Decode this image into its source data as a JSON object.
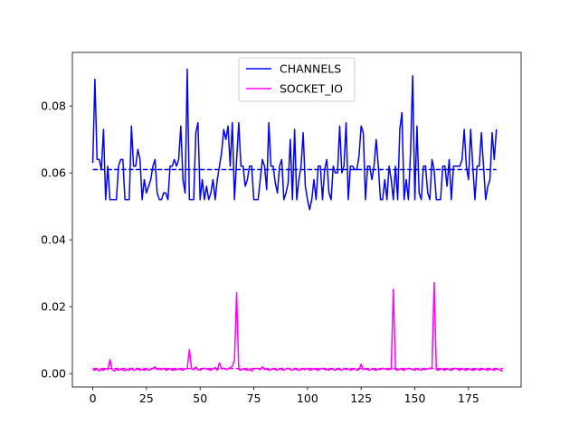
{
  "chart_data": {
    "type": "line",
    "title": "",
    "xlabel": "",
    "ylabel": "",
    "xlim": [
      -9.5,
      199.5
    ],
    "ylim": [
      -0.004,
      0.096
    ],
    "x_ticks": [
      0,
      25,
      50,
      75,
      100,
      125,
      150,
      175
    ],
    "x_tick_labels": [
      "0",
      "25",
      "50",
      "75",
      "100",
      "125",
      "150",
      "175"
    ],
    "y_ticks": [
      0.0,
      0.02,
      0.04,
      0.06,
      0.08
    ],
    "y_tick_labels": [
      "0.00",
      "0.02",
      "0.04",
      "0.06",
      "0.08"
    ],
    "grid": false,
    "legend": {
      "placement": "top-center"
    },
    "x_start": 0,
    "series": [
      {
        "name": "CHANNELS",
        "color": "#0000ff",
        "mean": 0.061,
        "values": [
          0.063,
          0.088,
          0.064,
          0.064,
          0.061,
          0.073,
          0.052,
          0.062,
          0.052,
          0.052,
          0.052,
          0.052,
          0.062,
          0.064,
          0.064,
          0.052,
          0.052,
          0.052,
          0.074,
          0.062,
          0.062,
          0.067,
          0.064,
          0.052,
          0.058,
          0.054,
          0.056,
          0.058,
          0.062,
          0.064,
          0.054,
          0.052,
          0.052,
          0.054,
          0.054,
          0.052,
          0.062,
          0.062,
          0.064,
          0.062,
          0.064,
          0.074,
          0.058,
          0.054,
          0.091,
          0.052,
          0.052,
          0.052,
          0.072,
          0.075,
          0.052,
          0.058,
          0.052,
          0.056,
          0.052,
          0.054,
          0.058,
          0.052,
          0.058,
          0.062,
          0.066,
          0.073,
          0.07,
          0.074,
          0.062,
          0.075,
          0.052,
          0.064,
          0.075,
          0.062,
          0.062,
          0.056,
          0.058,
          0.062,
          0.062,
          0.052,
          0.052,
          0.052,
          0.058,
          0.064,
          0.062,
          0.055,
          0.075,
          0.062,
          0.062,
          0.057,
          0.054,
          0.062,
          0.064,
          0.052,
          0.054,
          0.057,
          0.07,
          0.052,
          0.073,
          0.052,
          0.058,
          0.062,
          0.072,
          0.056,
          0.052,
          0.049,
          0.052,
          0.058,
          0.052,
          0.062,
          0.062,
          0.052,
          0.061,
          0.064,
          0.054,
          0.052,
          0.062,
          0.06,
          0.06,
          0.074,
          0.06,
          0.062,
          0.075,
          0.052,
          0.062,
          0.062,
          0.061,
          0.061,
          0.065,
          0.074,
          0.072,
          0.052,
          0.062,
          0.062,
          0.058,
          0.062,
          0.07,
          0.062,
          0.052,
          0.052,
          0.058,
          0.052,
          0.062,
          0.058,
          0.052,
          0.062,
          0.052,
          0.073,
          0.078,
          0.052,
          0.058,
          0.052,
          0.066,
          0.089,
          0.052,
          0.074,
          0.054,
          0.052,
          0.062,
          0.062,
          0.054,
          0.052,
          0.064,
          0.061,
          0.052,
          0.052,
          0.052,
          0.062,
          0.062,
          0.056,
          0.064,
          0.052,
          0.062,
          0.062,
          0.062,
          0.062,
          0.064,
          0.073,
          0.062,
          0.058,
          0.073,
          0.062,
          0.052,
          0.062,
          0.062,
          0.072,
          0.062,
          0.052,
          0.056,
          0.058,
          0.072,
          0.064,
          0.073
        ]
      },
      {
        "name": "SOCKET_IO",
        "color": "#ff00ff",
        "mean": 0.0015,
        "values": [
          0.0012,
          0.001,
          0.0014,
          0.0008,
          0.0012,
          0.001,
          0.0015,
          0.0012,
          0.0042,
          0.0012,
          0.0008,
          0.0012,
          0.001,
          0.0014,
          0.0011,
          0.0009,
          0.0012,
          0.001,
          0.0016,
          0.001,
          0.0012,
          0.0014,
          0.001,
          0.0012,
          0.001,
          0.0014,
          0.001,
          0.0012,
          0.0016,
          0.002,
          0.0012,
          0.0014,
          0.0012,
          0.0016,
          0.001,
          0.0012,
          0.0014,
          0.001,
          0.0012,
          0.0011,
          0.0014,
          0.0012,
          0.001,
          0.0014,
          0.0016,
          0.0072,
          0.0014,
          0.0012,
          0.002,
          0.0012,
          0.001,
          0.0014,
          0.0016,
          0.0014,
          0.0012,
          0.001,
          0.0014,
          0.0018,
          0.001,
          0.0032,
          0.0014,
          0.0016,
          0.0012,
          0.0014,
          0.0018,
          0.0022,
          0.004,
          0.0242,
          0.0012,
          0.001,
          0.0014,
          0.0012,
          0.001,
          0.0012,
          0.0008,
          0.0014,
          0.0016,
          0.0014,
          0.0012,
          0.002,
          0.0012,
          0.0014,
          0.001,
          0.0012,
          0.0014,
          0.0012,
          0.001,
          0.0014,
          0.0012,
          0.001,
          0.0014,
          0.0016,
          0.0012,
          0.001,
          0.0014,
          0.0012,
          0.001,
          0.0012,
          0.0014,
          0.0012,
          0.0016,
          0.001,
          0.0012,
          0.0014,
          0.0012,
          0.001,
          0.0014,
          0.0016,
          0.0012,
          0.0012,
          0.001,
          0.0014,
          0.0012,
          0.001,
          0.0014,
          0.0012,
          0.001,
          0.0016,
          0.0012,
          0.0014,
          0.001,
          0.0012,
          0.0014,
          0.001,
          0.0012,
          0.0028,
          0.0012,
          0.0014,
          0.0012,
          0.001,
          0.0014,
          0.0012,
          0.001,
          0.0014,
          0.0012,
          0.0016,
          0.0014,
          0.0012,
          0.0012,
          0.0014,
          0.0252,
          0.0012,
          0.001,
          0.0014,
          0.0012,
          0.001,
          0.0014,
          0.0016,
          0.0014,
          0.0012,
          0.001,
          0.0014,
          0.0012,
          0.001,
          0.0014,
          0.0012,
          0.0014,
          0.0016,
          0.0018,
          0.0272,
          0.0012,
          0.001,
          0.0014,
          0.0012,
          0.001,
          0.0014,
          0.0012,
          0.001,
          0.0014,
          0.0016,
          0.0012,
          0.001,
          0.0014,
          0.0012,
          0.001,
          0.0014,
          0.0012,
          0.001,
          0.0012,
          0.0014,
          0.001,
          0.0012,
          0.0014,
          0.0012,
          0.001,
          0.0014,
          0.0012,
          0.001,
          0.0014,
          0.0012,
          0.001,
          0.0008
        ]
      }
    ]
  }
}
